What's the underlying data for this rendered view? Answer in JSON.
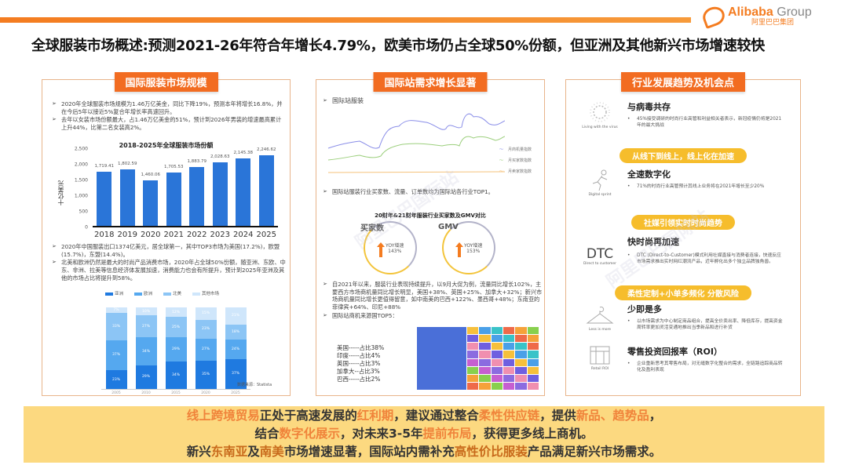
{
  "header": {
    "logo_en": "Alibaba",
    "logo_group": " Group",
    "logo_cn": "阿里巴巴集团",
    "title": "全球服装市场概述:预测2021-26年符合年增长4.79%，欧美市场仍占全球50%份额，但亚洲及其他新兴市场增速较快"
  },
  "panel1": {
    "title": "国际服装市场规模",
    "bullets_top": [
      "2020年全球服装市场规模为1.46万亿美金，同比下降19%，预测本年将增长16.8%，并在今后5年以接近5%复合年增长率高速回升。",
      "去年以女装市场份额最大，占1.46万亿美金的51%，预计到2026年男装的增速最高累计上升44%，比第二名女装高2%。"
    ],
    "bullets_bottom": [
      "2020年中国服装出口1374亿美元，居全球第一，其中TOP3市场为美国(17.2%)，欧盟(15.7%)，东盟(14.4%)。",
      "北美和欧洲仍然是最大的时尚产品消费市场，2020年占全球50%份额，随亚洲、东欧、中东、非洲、拉美等信息经济体发展加速，消费能力也会有所提升，预计到2025年亚洲及其他的市场占比将提升到58%。"
    ],
    "source": "数据来源：Statista"
  },
  "panel2": {
    "title": "国际站需求增长显著",
    "section1": "国际站服装",
    "line_legend": [
      "月商机量指数",
      "月买家数指数",
      "月卖家数指数"
    ],
    "bullet2": "国际站服装行业买家数、流量、订单数均为国际站各行业TOP1。",
    "donut_title": "20财年&21财年服装行业买家数及GMV对比",
    "donuts": [
      {
        "label": "买家数",
        "yoy_label": "YOY增速",
        "yoy": "143%"
      },
      {
        "label": "GMV",
        "yoy_label": "YOY增速",
        "yoy": "153%"
      }
    ],
    "bullet3": "自2021年以来，服装行业表现持续提升，以9月大促为例，流量同比增长102%，主要西方市场商机量同比增长明显，美国+38%、英国+25%、加拿大+32%；新兴市场商机量同比增长更值得留意，如中南美的巴西+122%、墨西哥+48%；东南亚的菲律宾+64%、印尼+88%",
    "bullet4": "国际站商机来源国TOP5：",
    "top5": [
      "美国-----占比38%",
      "印度-----占比4%",
      "英国-----占比3%",
      "加拿大--占比3%",
      "巴西-----占比2%"
    ]
  },
  "panel3": {
    "title": "行业发展趋势及机会点",
    "trends": [
      {
        "icon_label": "Living with the virus",
        "heading": "与病毒共存",
        "desc": "45%接受调研的时尚行业高管和利益相关者表示，新冠疫情仍将是2021年的最大挑战"
      },
      {
        "icon_label": "Digital sprint",
        "heading": "全速数字化",
        "desc": "71%的时尚行业高管预计其线上业务将在2021年增长至少20%"
      },
      {
        "icon_label": "Direct to customer",
        "icon_text": "DTC",
        "heading": "快时尚再加速",
        "desc": "DTC (Direct-to-Customer)模式利用社媒直接与消费者连接，快速反应市场需求推出实时网红潮流产品，近年孵化出多个独立品牌独角兽。"
      },
      {
        "icon_label": "Less is more",
        "heading": "少即是多",
        "desc": "以市场需求为中心制定商品组合，提高全价卖出率、降低库存，提高资金周转率更加灵活变通地推出当季新品和进行补货"
      },
      {
        "icon_label": "Retail ROI",
        "heading": "零售投资回报率（ROI）",
        "desc": "企业重新思考其零售布局，对无缝数字化整合的需求，全链路追踪商品转化及盈利表现"
      }
    ],
    "pills": [
      "从线下到线上，线上化在加速",
      "社媒引领实时时尚趋势",
      "柔性定制+小单多频化 分散风险"
    ]
  },
  "footer": {
    "l1": [
      {
        "t": "线上跨境贸易",
        "hl": 1
      },
      {
        "t": "正处于高速发展的",
        "hl": 0
      },
      {
        "t": "红利期",
        "hl": 1
      },
      {
        "t": "，建议通过整合",
        "hl": 0
      },
      {
        "t": "柔性供应链",
        "hl": 1
      },
      {
        "t": "，提供",
        "hl": 0
      },
      {
        "t": "新品、趋势品",
        "hl": 1
      },
      {
        "t": "，",
        "hl": 0
      }
    ],
    "l2": [
      {
        "t": "结合",
        "hl": 0
      },
      {
        "t": "数字化展示",
        "hl": 1
      },
      {
        "t": "，对未来3-5年",
        "hl": 0
      },
      {
        "t": "提前布局",
        "hl": 1
      },
      {
        "t": "，获得更多线上商机。",
        "hl": 0
      }
    ],
    "l3": [
      {
        "t": "新兴",
        "hl": 0
      },
      {
        "t": "东南亚",
        "hl": 2
      },
      {
        "t": "及",
        "hl": 0
      },
      {
        "t": "南美",
        "hl": 2
      },
      {
        "t": "市场增速显著，国际站内需补充",
        "hl": 0
      },
      {
        "t": "高性价比服装",
        "hl": 2
      },
      {
        "t": "产品满足新兴市场需求。",
        "hl": 0
      }
    ]
  },
  "chart_data": [
    {
      "type": "bar",
      "title": "2018-2025年全球服装市场份额",
      "ylabel": "十亿美元",
      "categories": [
        "2018",
        "2019",
        "2020",
        "2021",
        "2022",
        "2023",
        "2024",
        "2025"
      ],
      "values": [
        1719.41,
        1802.59,
        1460.06,
        1705.53,
        1883.79,
        2028.63,
        2145.38,
        2246.62
      ],
      "value_labels": [
        "1,719.41",
        "1,802.59",
        "1,460.06",
        "1,705.53",
        "1,883.79",
        "2,028.63",
        "2,145.38",
        "2,246.62"
      ],
      "yticks": [
        "2,500",
        "2,000",
        "1,500",
        "1,000",
        "500",
        "0"
      ],
      "ylim": [
        0,
        2500
      ]
    },
    {
      "type": "bar",
      "stacked": true,
      "categories": [
        "2005",
        "2010",
        "2015",
        "2020",
        "2025"
      ],
      "legend": [
        "亚洲",
        "欧洲",
        "北美",
        "其他市场"
      ],
      "series": [
        {
          "name": "亚洲",
          "values": [
            23,
            29,
            34,
            35,
            37
          ],
          "color": "#1f7ae0"
        },
        {
          "name": "欧洲",
          "values": [
            37,
            34,
            29,
            27,
            24
          ],
          "color": "#55a8ef"
        },
        {
          "name": "北美",
          "values": [
            33,
            27,
            25,
            23,
            18
          ],
          "color": "#8cc5f5"
        },
        {
          "name": "其他市场",
          "values": [
            7,
            10,
            12,
            15,
            21
          ],
          "color": "#cfe6fb"
        }
      ]
    },
    {
      "type": "line",
      "title": "国际站服装",
      "series": [
        {
          "name": "月商机量指数",
          "color": "#8a8ee8"
        },
        {
          "name": "月买家数指数",
          "color": "#9ccf7d"
        },
        {
          "name": "月卖家数指数",
          "color": "#f5c27a"
        }
      ]
    }
  ]
}
